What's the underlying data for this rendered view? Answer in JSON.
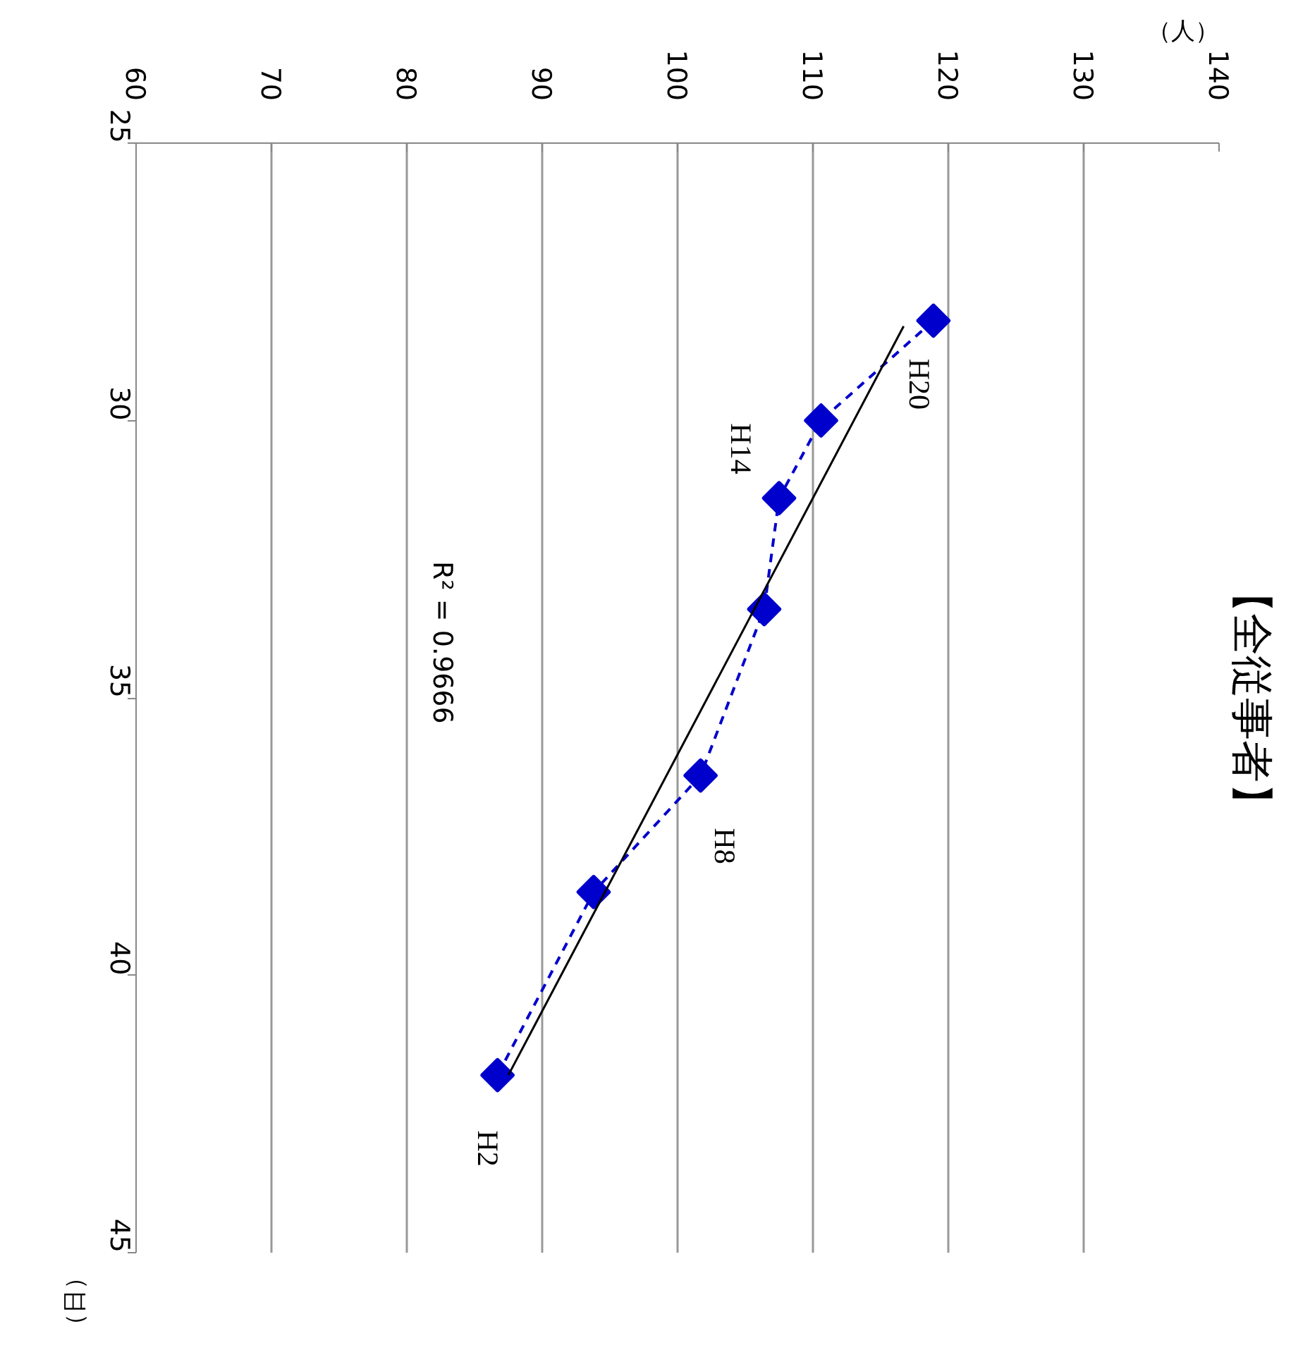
{
  "chart_data": {
    "type": "line",
    "title": "【全従事者】",
    "xlabel": "（人）",
    "ylabel": "（日）",
    "xlim": [
      60,
      140
    ],
    "xticks": [
      60,
      70,
      80,
      90,
      100,
      110,
      120,
      130,
      140
    ],
    "ylim": [
      45,
      25
    ],
    "yticks": [
      25,
      30,
      35,
      40,
      45
    ],
    "grid": "x",
    "series": [
      {
        "color": "#0000cc",
        "marker": "diamond",
        "line_style": "dashed",
        "x": [
          118.9,
          110.6,
          107.5,
          106.4,
          101.7,
          93.8,
          86.7
        ],
        "values": [
          28.2,
          30.0,
          31.4,
          33.4,
          36.4,
          38.5,
          41.8
        ]
      },
      {
        "type": "line",
        "color": "#000000",
        "marker": "none",
        "line_style": "solid",
        "x": [
          116.7,
          87.5
        ],
        "values": [
          28.3,
          41.8
        ]
      }
    ],
    "annotations": [
      {
        "text": "H20",
        "x": 118.9,
        "y": 28.2
      },
      {
        "text": "H14",
        "x": 110.6,
        "y": 30.0
      },
      {
        "text": "H8",
        "x": 101.7,
        "y": 36.4
      },
      {
        "text": "H2",
        "x": 86.7,
        "y": 41.8
      },
      "R² = 0.9666"
    ]
  }
}
